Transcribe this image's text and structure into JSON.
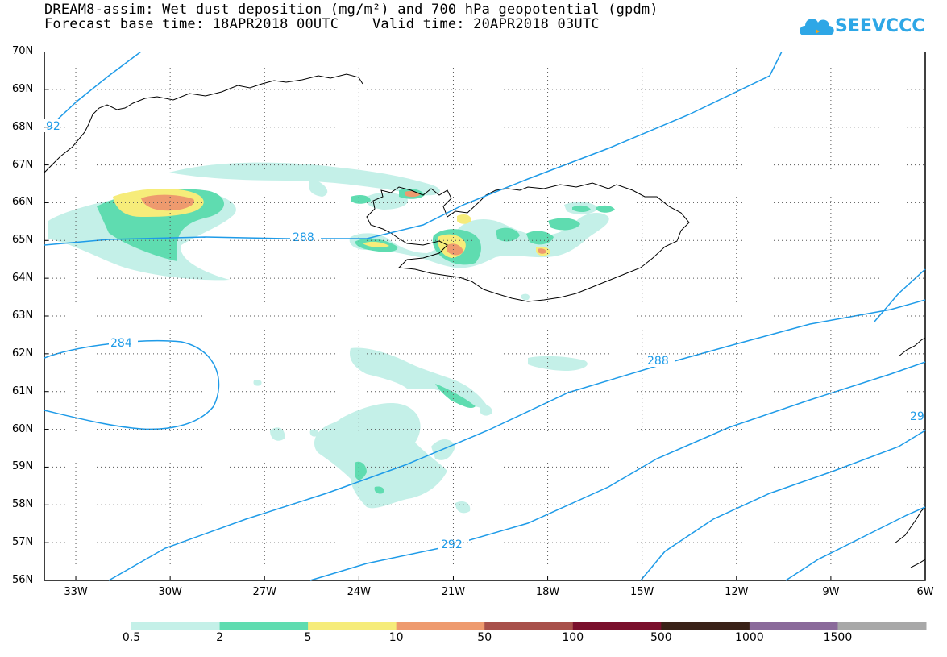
{
  "header": {
    "line1": "DREAM8-assim: Wet dust deposition (mg/m²) and 700 hPa geopotential (gpdm)",
    "line2": "Forecast base time: 18APR2018 00UTC    Valid time: 20APR2018 03UTC"
  },
  "logo": {
    "text": "SEEVCCC",
    "icon": "cloud-icon",
    "color": "#2ea7e6"
  },
  "map": {
    "lat_range": [
      56,
      70
    ],
    "lon_range": [
      -34.0,
      -6.0
    ],
    "lat_labels": [
      "70N",
      "69N",
      "68N",
      "67N",
      "66N",
      "65N",
      "64N",
      "63N",
      "62N",
      "61N",
      "60N",
      "59N",
      "58N",
      "57N",
      "56N"
    ],
    "lon_labels": [
      "33W",
      "30W",
      "27W",
      "24W",
      "21W",
      "18W",
      "15W",
      "12W",
      "9W",
      "6W"
    ],
    "contour_color": "#1e9be8",
    "contour_labels": [
      "92",
      "288",
      "284",
      "288",
      "29",
      "292"
    ]
  },
  "colorbar": {
    "labels": [
      "0.5",
      "2",
      "5",
      "10",
      "50",
      "100",
      "500",
      "1000",
      "1500"
    ],
    "colors": [
      "#c4f0e8",
      "#5fdcb0",
      "#f6ec7a",
      "#ee9a6e",
      "#a8504a",
      "#7a0f2c",
      "#3a2218",
      "#8a6a9a",
      "#a8a8a8"
    ]
  }
}
